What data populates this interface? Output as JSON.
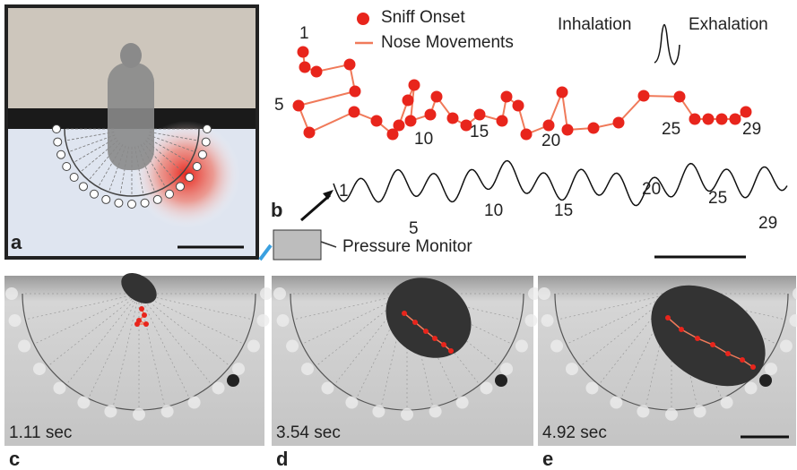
{
  "panel_a": {
    "label": "a"
  },
  "panel_b": {
    "label": "b",
    "legend": {
      "sniff_onset": "Sniff Onset",
      "nose_movements": "Nose Movements"
    },
    "waveform": {
      "inhalation": "Inhalation",
      "exhalation": "Exhalation"
    },
    "trajectory_labels": [
      "1",
      "5",
      "10",
      "15",
      "20",
      "25",
      "29"
    ],
    "trace_labels": [
      "1",
      "5",
      "10",
      "15",
      "20",
      "25",
      "29"
    ],
    "pressure_monitor": "Pressure Monitor"
  },
  "photo_panels": [
    {
      "label": "c",
      "time": "1.11 sec"
    },
    {
      "label": "d",
      "time": "3.54 sec"
    },
    {
      "label": "e",
      "time": "4.92 sec"
    }
  ]
}
